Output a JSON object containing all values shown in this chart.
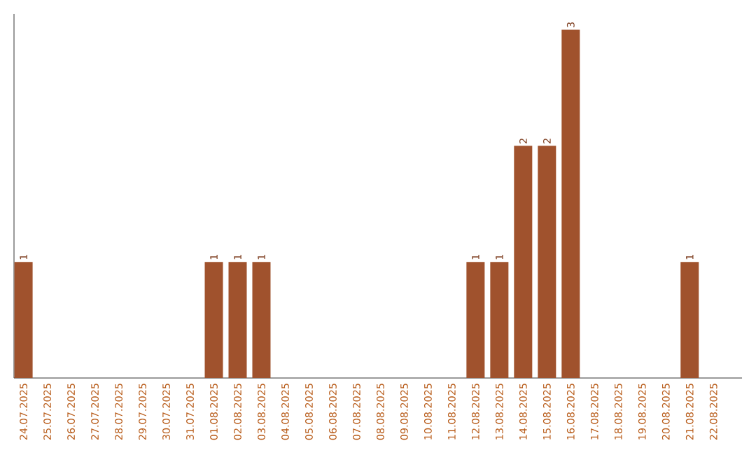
{
  "chart_data": {
    "type": "bar",
    "categories": [
      "24.07.2025",
      "25.07.2025",
      "26.07.2025",
      "27.07.2025",
      "28.07.2025",
      "29.07.2025",
      "30.07.2025",
      "31.07.2025",
      "01.08.2025",
      "02.08.2025",
      "03.08.2025",
      "04.08.2025",
      "05.08.2025",
      "06.08.2025",
      "07.08.2025",
      "08.08.2025",
      "09.08.2025",
      "10.08.2025",
      "11.08.2025",
      "12.08.2025",
      "13.08.2025",
      "14.08.2025",
      "15.08.2025",
      "16.08.2025",
      "17.08.2025",
      "18.08.2025",
      "19.08.2025",
      "20.08.2025",
      "21.08.2025",
      "22.08.2025"
    ],
    "values": [
      1,
      0,
      0,
      0,
      0,
      0,
      0,
      0,
      1,
      1,
      1,
      0,
      0,
      0,
      0,
      0,
      0,
      0,
      0,
      1,
      1,
      2,
      2,
      3,
      0,
      0,
      0,
      0,
      1,
      0
    ],
    "value_labels": [
      "1",
      null,
      null,
      null,
      null,
      null,
      null,
      null,
      "1",
      "1",
      "1",
      null,
      null,
      null,
      null,
      null,
      null,
      null,
      null,
      "1",
      "1",
      "2",
      "2",
      "3",
      null,
      null,
      null,
      null,
      "1",
      null
    ],
    "color": "#a0522d"
  }
}
